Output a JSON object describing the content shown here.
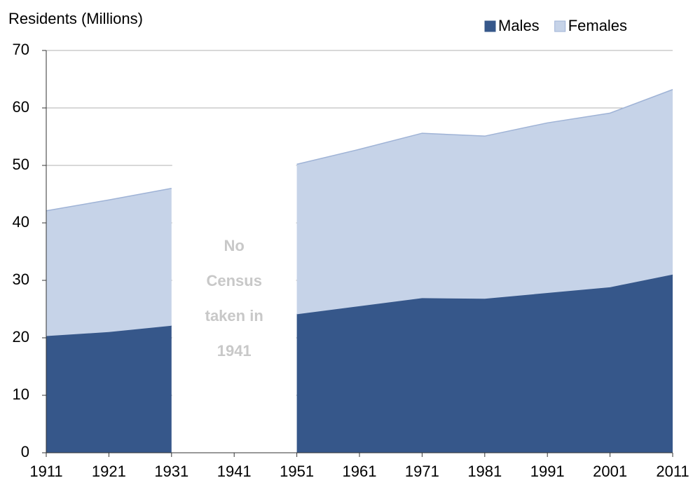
{
  "chart_data": {
    "type": "stacked_area",
    "title": "Residents (Millions)",
    "categories": [
      "1911",
      "1921",
      "1931",
      "1941",
      "1951",
      "1961",
      "1971",
      "1981",
      "1991",
      "2001",
      "2011"
    ],
    "series": [
      {
        "name": "Males",
        "color": "#36578a",
        "values": [
          20.3,
          21.0,
          22.1,
          null,
          24.1,
          25.5,
          26.9,
          26.8,
          27.8,
          28.8,
          31.0
        ]
      },
      {
        "name": "Females",
        "color": "#c6d3e8",
        "values": [
          21.8,
          23.0,
          23.9,
          null,
          26.1,
          27.3,
          28.7,
          28.3,
          29.6,
          30.3,
          32.2
        ]
      }
    ],
    "ylim": [
      0,
      70
    ],
    "yticks": [
      0,
      10,
      20,
      30,
      40,
      50,
      60,
      70
    ],
    "grid": true,
    "legend": "top-right",
    "annotation": [
      "No",
      "Census",
      "taken in",
      "1941"
    ]
  }
}
